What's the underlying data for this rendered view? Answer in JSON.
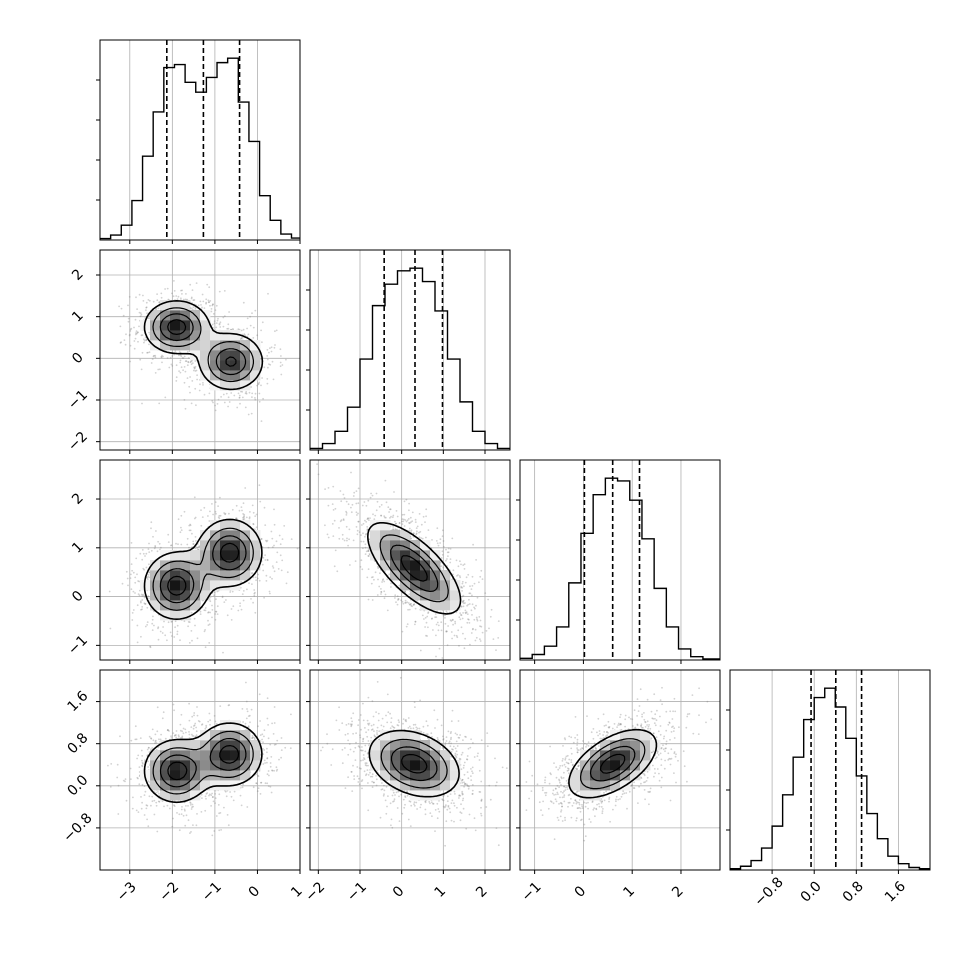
{
  "chart_data": {
    "type": "corner",
    "title": "",
    "dimensions": 4,
    "colors": {
      "line": "#000000",
      "grid": "#b0b0b0",
      "scatter": "#7f7f7f"
    },
    "grid": true,
    "axes": [
      {
        "range": [
          -3.7,
          1.0
        ],
        "ticks": [
          -3,
          -2,
          -1,
          0,
          1
        ],
        "tick_labels": [
          "−3",
          "−2",
          "−1",
          "0",
          "1"
        ]
      },
      {
        "range": [
          -2.2,
          2.6
        ],
        "ticks": [
          -2,
          -1,
          0,
          1,
          2
        ],
        "tick_labels": [
          "−2",
          "−1",
          "0",
          "1",
          "2"
        ]
      },
      {
        "range": [
          -1.3,
          2.8
        ],
        "ticks": [
          -1,
          0,
          1,
          2
        ],
        "tick_labels": [
          "−1",
          "0",
          "1",
          "2"
        ]
      },
      {
        "range": [
          -1.6,
          2.2
        ],
        "ticks": [
          -0.8,
          0.0,
          0.8,
          1.6
        ],
        "tick_labels": [
          "−0.8",
          "0.0",
          "0.8",
          "1.6"
        ]
      }
    ],
    "marginals": [
      {
        "dim": 0,
        "bin_edges": [
          -3.7,
          -3.45,
          -3.2,
          -2.95,
          -2.7,
          -2.45,
          -2.2,
          -1.95,
          -1.7,
          -1.45,
          -1.2,
          -0.95,
          -0.7,
          -0.45,
          -0.2,
          0.05,
          0.3,
          0.55,
          0.8,
          1.0
        ],
        "counts": [
          0.3,
          1.0,
          3.0,
          8.0,
          17.0,
          26.0,
          35.0,
          35.6,
          32.0,
          30.0,
          33.0,
          36.0,
          36.9,
          28.0,
          20.0,
          9.0,
          4.0,
          1.2,
          0.4
        ],
        "quantiles": [
          -2.13,
          -1.27,
          -0.42
        ]
      },
      {
        "dim": 1,
        "bin_edges": [
          -2.2,
          -1.9,
          -1.6,
          -1.3,
          -1.0,
          -0.7,
          -0.4,
          -0.1,
          0.2,
          0.5,
          0.8,
          1.1,
          1.4,
          1.7,
          2.0,
          2.3,
          2.6
        ],
        "counts": [
          0.3,
          1.2,
          3.5,
          8.0,
          17.0,
          27.0,
          31.0,
          33.5,
          34.0,
          31.5,
          26.0,
          17.0,
          9.0,
          3.5,
          1.2,
          0.3
        ],
        "quantiles": [
          -0.42,
          0.32,
          0.98
        ]
      },
      {
        "dim": 2,
        "bin_edges": [
          -1.3,
          -1.05,
          -0.8,
          -0.55,
          -0.3,
          -0.05,
          0.2,
          0.45,
          0.7,
          0.95,
          1.2,
          1.45,
          1.7,
          1.95,
          2.2,
          2.45,
          2.8
        ],
        "counts": [
          0.3,
          1.0,
          2.5,
          6.0,
          14.0,
          23.0,
          30.0,
          33.0,
          32.5,
          29.0,
          22.0,
          13.0,
          6.0,
          2.0,
          0.6,
          0.2
        ],
        "quantiles": [
          0.02,
          0.6,
          1.15
        ]
      },
      {
        "dim": 3,
        "bin_edges": [
          -1.6,
          -1.4,
          -1.2,
          -1.0,
          -0.8,
          -0.6,
          -0.4,
          -0.2,
          0.0,
          0.2,
          0.4,
          0.6,
          0.8,
          1.0,
          1.2,
          1.4,
          1.6,
          1.8,
          2.0,
          2.2
        ],
        "counts": [
          0.2,
          0.6,
          1.5,
          3.5,
          7.0,
          12.0,
          18.0,
          24.0,
          27.5,
          29.0,
          26.0,
          21.0,
          15.0,
          9.0,
          5.0,
          2.2,
          1.0,
          0.4,
          0.2
        ],
        "quantiles": [
          -0.06,
          0.41,
          0.9
        ]
      }
    ],
    "joint": [
      {
        "x_dim": 0,
        "y_dim": 1,
        "modes": [
          {
            "x": -1.9,
            "y": 0.75,
            "sx": 0.42,
            "sy": 0.35,
            "rho": 0.0,
            "w": 0.5
          },
          {
            "x": -0.62,
            "y": -0.08,
            "sx": 0.42,
            "sy": 0.38,
            "rho": 0.0,
            "w": 0.5
          }
        ]
      },
      {
        "x_dim": 0,
        "y_dim": 2,
        "modes": [
          {
            "x": -1.9,
            "y": 0.22,
            "sx": 0.42,
            "sy": 0.38,
            "rho": 0.0,
            "w": 0.5
          },
          {
            "x": -0.65,
            "y": 0.9,
            "sx": 0.42,
            "sy": 0.38,
            "rho": 0.0,
            "w": 0.5
          }
        ]
      },
      {
        "x_dim": 1,
        "y_dim": 2,
        "modes": [
          {
            "x": 0.3,
            "y": 0.58,
            "sx": 0.62,
            "sy": 0.52,
            "rho": -0.7,
            "w": 1.0
          }
        ]
      },
      {
        "x_dim": 0,
        "y_dim": 3,
        "modes": [
          {
            "x": -1.9,
            "y": 0.28,
            "sx": 0.42,
            "sy": 0.33,
            "rho": 0.0,
            "w": 0.5
          },
          {
            "x": -0.65,
            "y": 0.6,
            "sx": 0.42,
            "sy": 0.33,
            "rho": 0.0,
            "w": 0.5
          }
        ]
      },
      {
        "x_dim": 1,
        "y_dim": 3,
        "modes": [
          {
            "x": 0.3,
            "y": 0.42,
            "sx": 0.6,
            "sy": 0.35,
            "rho": -0.3,
            "w": 1.0
          }
        ]
      },
      {
        "x_dim": 2,
        "y_dim": 3,
        "modes": [
          {
            "x": 0.6,
            "y": 0.42,
            "sx": 0.5,
            "sy": 0.36,
            "rho": 0.55,
            "w": 1.0
          }
        ]
      }
    ]
  }
}
